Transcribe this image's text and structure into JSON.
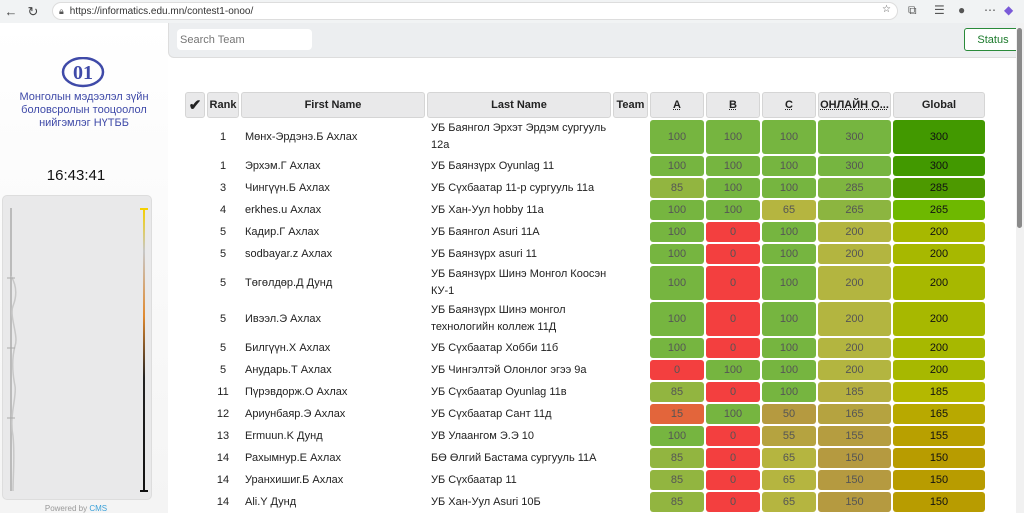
{
  "browser": {
    "url": "https://informatics.edu.mn/contest1-onoo/"
  },
  "sidebar": {
    "logo_text": "01",
    "org_name": "Монголын мэдээлэл зүйн боловсролын тооцоолол нийгэмлэг НҮТББ",
    "clock": "16:43:41",
    "powered_by": "Powered by",
    "cms": "CMS"
  },
  "toolbar": {
    "search_placeholder": "Search Team",
    "status_label": "Status"
  },
  "table": {
    "headers": {
      "check": "✔",
      "rank": "Rank",
      "first": "First Name",
      "last": "Last Name",
      "team": "Team",
      "a": "A",
      "b": "B",
      "c": "C",
      "online": "ОНЛАЙН О...",
      "global": "Global"
    },
    "rows": [
      {
        "rank": "1",
        "first": "Мөнх-Эрдэнэ.Б Ахлах",
        "last": "УБ Баянгол Эрхэт Эрдэм сургууль 12а",
        "a": 100,
        "b": 100,
        "c": 100,
        "online": 300,
        "global": 300
      },
      {
        "rank": "1",
        "first": "Эрхэм.Г Ахлах",
        "last": "УБ Баянзүрх Oyunlag 11",
        "a": 100,
        "b": 100,
        "c": 100,
        "online": 300,
        "global": 300
      },
      {
        "rank": "3",
        "first": "Чингүүн.Б Ахлах",
        "last": "УБ Сүхбаатар 11-р сургууль 11а",
        "a": 85,
        "b": 100,
        "c": 100,
        "online": 285,
        "global": 285
      },
      {
        "rank": "4",
        "first": "erkhes.u Ахлах",
        "last": "УБ Хан-Уул hobby 11а",
        "a": 100,
        "b": 100,
        "c": 65,
        "online": 265,
        "global": 265
      },
      {
        "rank": "5",
        "first": "Кадир.Г Ахлах",
        "last": "УБ Баянгол Asuri 11А",
        "a": 100,
        "b": 0,
        "c": 100,
        "online": 200,
        "global": 200
      },
      {
        "rank": "5",
        "first": "sodbayar.z Ахлах",
        "last": "УБ Баянзүрх asuri 11",
        "a": 100,
        "b": 0,
        "c": 100,
        "online": 200,
        "global": 200
      },
      {
        "rank": "5",
        "first": "Төгөлдөр.Д Дунд",
        "last": "УБ Баянзүрх Шинэ Монгол Коосэн КУ-1",
        "a": 100,
        "b": 0,
        "c": 100,
        "online": 200,
        "global": 200
      },
      {
        "rank": "5",
        "first": "Ивээл.Э Ахлах",
        "last": "УБ Баянзүрх Шинэ монгол технологийн коллеж 11Д",
        "a": 100,
        "b": 0,
        "c": 100,
        "online": 200,
        "global": 200
      },
      {
        "rank": "5",
        "first": "Билгүүн.Х Ахлах",
        "last": "УБ Сүхбаатар Хобби 11б",
        "a": 100,
        "b": 0,
        "c": 100,
        "online": 200,
        "global": 200
      },
      {
        "rank": "5",
        "first": "Анударь.Т Ахлах",
        "last": "УБ Чингэлтэй Олонлог эгээ 9а",
        "a": 0,
        "b": 100,
        "c": 100,
        "online": 200,
        "global": 200
      },
      {
        "rank": "11",
        "first": "Пүрэвдорж.О Ахлах",
        "last": "УБ Сүхбаатар Oyunlag 11в",
        "a": 85,
        "b": 0,
        "c": 100,
        "online": 185,
        "global": 185
      },
      {
        "rank": "12",
        "first": "Ариунбаяр.Э Ахлах",
        "last": "УБ Сүхбаатар Сант 11д",
        "a": 15,
        "b": 100,
        "c": 50,
        "online": 165,
        "global": 165
      },
      {
        "rank": "13",
        "first": "Ermuun.K Дунд",
        "last": "УВ Улаангом Э.Э 10",
        "a": 100,
        "b": 0,
        "c": 55,
        "online": 155,
        "global": 155
      },
      {
        "rank": "14",
        "first": "Рахымнур.Е Ахлах",
        "last": "БӨ Өлгий Бастама сургууль 11А",
        "a": 85,
        "b": 0,
        "c": 65,
        "online": 150,
        "global": 150
      },
      {
        "rank": "14",
        "first": "Уранхишиг.Б Ахлах",
        "last": "УБ Сүхбаатар 11",
        "a": 85,
        "b": 0,
        "c": 65,
        "online": 150,
        "global": 150
      },
      {
        "rank": "14",
        "first": "Ali.Y Дунд",
        "last": "УБ Хан-Уул Asuri 10Б",
        "a": 85,
        "b": 0,
        "c": 65,
        "online": 150,
        "global": 150
      }
    ]
  }
}
